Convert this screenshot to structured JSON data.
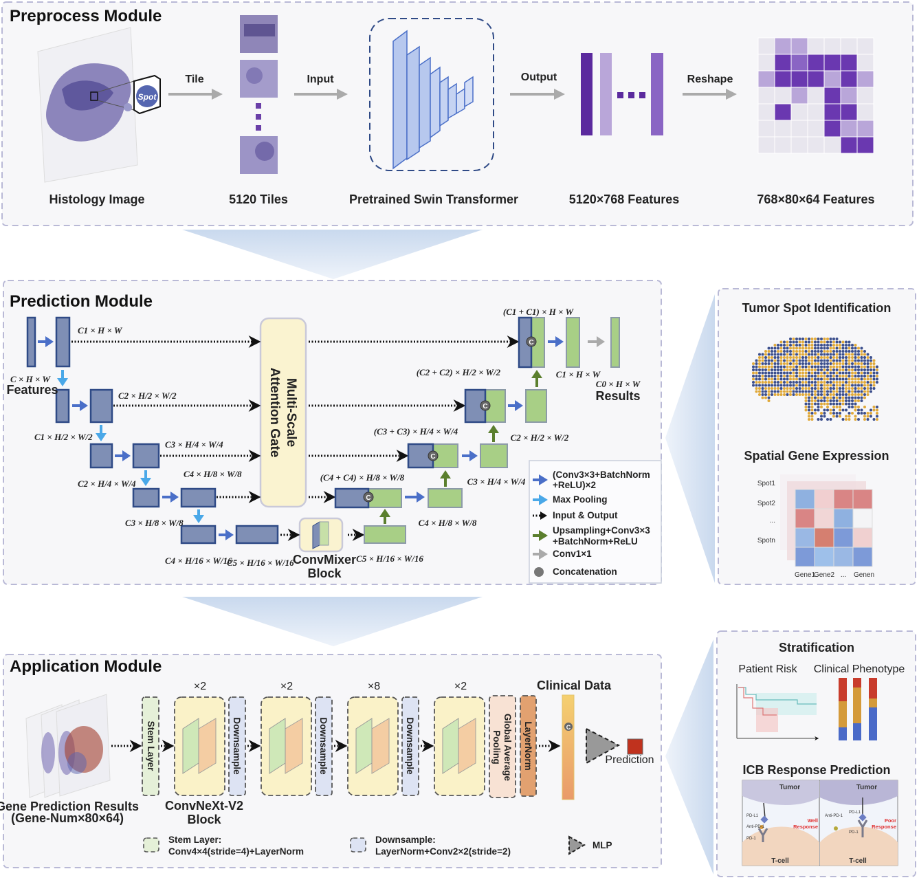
{
  "preprocess": {
    "title": "Preprocess Module",
    "arrows": {
      "tile": "Tile",
      "input": "Input",
      "output": "Output",
      "reshape": "Reshape"
    },
    "spot_label": "Spot",
    "captions": [
      "Histology Image",
      "5120 Tiles",
      "Pretrained Swin Transformer",
      "5120×768 Features",
      "768×80×64 Features"
    ]
  },
  "prediction": {
    "title": "Prediction Module",
    "attention_gate": [
      "Multi-Scale",
      "Attention Gate"
    ],
    "convmixer": [
      "ConvMixer",
      "Block"
    ],
    "features_label": "Features",
    "results_label": "Results",
    "dims": {
      "c1hw": "C1 × H × W",
      "chw": "C × H × W",
      "c2_2": "C2 × H/2 × W/2",
      "c1_2": "C1 × H/2 × W/2",
      "c3_4": "C3 × H/4 × W/4",
      "c2_4": "C2 × H/4 × W/4",
      "c4_8": "C4 × H/8 × W/8",
      "c3_8": "C3 × H/8 × W/8",
      "c4_16": "C4 × H/16 × W/16",
      "c5_16": "C5 × H/16 × W/16",
      "cat1": "(C1 + C1) × H × W",
      "cat2": "(C2 + C2) × H/2 × W/2",
      "cat3": "(C3 + C3) × H/4 × W/4",
      "cat4": "(C4 + C4) × H/8 × W/8",
      "d_c1hw": "C1 × H × W",
      "d_c0hw": "C0 × H × W",
      "d_c2_2": "C2 × H/2 × W/2",
      "d_c3_4": "C3 × H/4 × W/4",
      "d_c4_8": "C4 × H/8 × W/8",
      "d_c5_16": "C5 × H/16 × W/16"
    },
    "concat_symbol": "C",
    "legend": [
      {
        "label": "(Conv3×3+BatchNorm",
        "label2": "+ReLU)×2",
        "color": "#4a6fc8"
      },
      {
        "label": "Max Pooling",
        "color": "#4aa8e8"
      },
      {
        "label": "Input & Output",
        "color": "#111111"
      },
      {
        "label": "Upsampling+Conv3×3",
        "label2": "+BatchNorm+ReLU",
        "color": "#5b7f2e"
      },
      {
        "label": "Conv1×1",
        "color": "#aaaaaa"
      },
      {
        "label": "Concatenation",
        "color": "#777777"
      }
    ]
  },
  "tumor": {
    "title": "Tumor Spot Identification",
    "gene_title": "Spatial Gene Expression",
    "spots": [
      "Spot1",
      "Spot2",
      "...",
      "Spotn"
    ],
    "genes": [
      "Gene1",
      "Gene2",
      "...",
      "Genen"
    ]
  },
  "application": {
    "title": "Application Module",
    "input_caption": [
      "Gene Prediction Results",
      "(Gene-Num×80×64)"
    ],
    "stem": "Stem Layer",
    "downsample": "Downsample",
    "repeats": [
      "×2",
      "×2",
      "×8",
      "×2"
    ],
    "block_caption": [
      "ConvNeXt-V2",
      "Block"
    ],
    "gap": [
      "Global Average",
      "Pooling"
    ],
    "layernorm": "LayerNorm",
    "clinical": "Clinical Data",
    "prediction": "Prediction",
    "legend": {
      "stem": [
        "Stem Layer:",
        "Conv4×4(stride=4)+LayerNorm"
      ],
      "down": [
        "Downsample:",
        "LayerNorm+Conv2×2(stride=2)"
      ],
      "mlp": "MLP"
    }
  },
  "stratification": {
    "title": "Stratification",
    "left": "Patient Risk",
    "right": "Clinical Phenotype",
    "icb_title": "ICB Response Prediction",
    "icb": {
      "tumor": "Tumor",
      "tcell": "T-cell",
      "pdl1": "PD-L1",
      "antipd1": "Anti-PD-1",
      "pd1": "PD-1",
      "well": [
        "Well",
        "Response"
      ],
      "poor": [
        "Poor",
        "Response"
      ]
    }
  }
}
